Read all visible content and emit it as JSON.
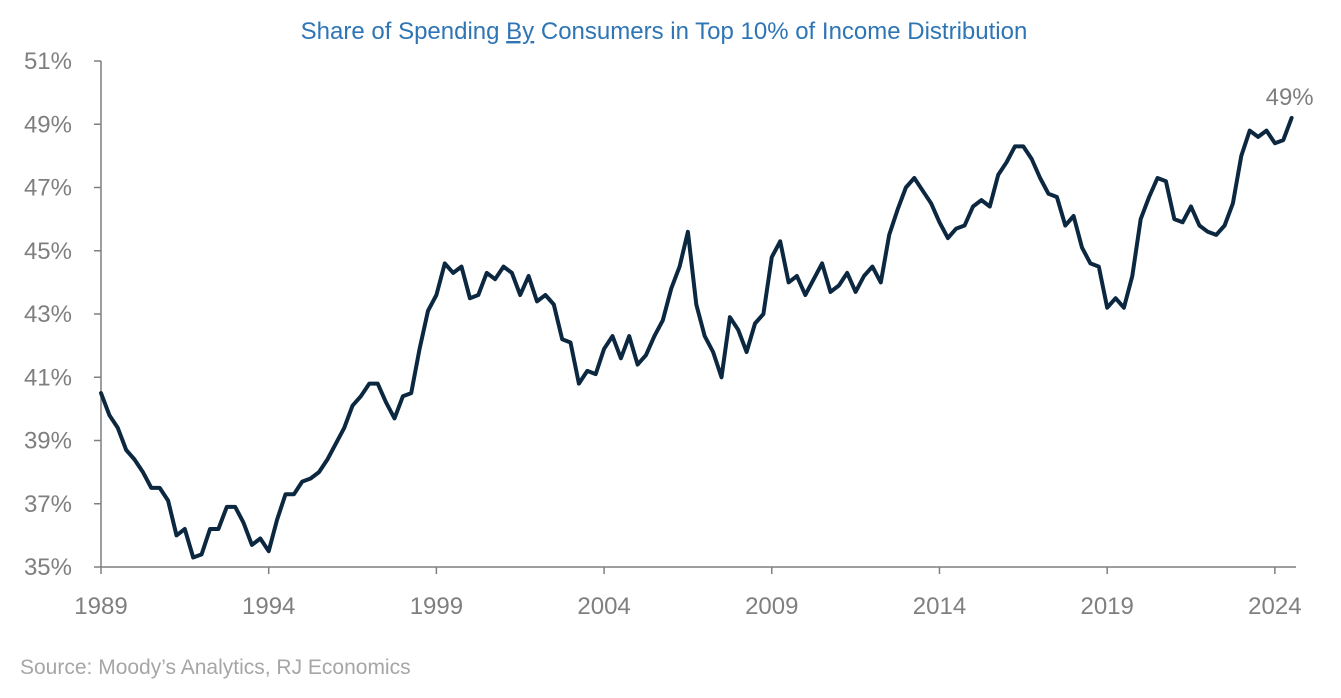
{
  "colors": {
    "title": "#2e75b6",
    "axis_text": "#7f7f7f",
    "series_line": "#0c2740",
    "axis_line": "#7f7f7f",
    "source_text": "#a6a6a6",
    "annotation_text": "#7f7f7f"
  },
  "source": "Source: Moody’s Analytics, RJ Economics",
  "chart_data": {
    "type": "line",
    "title_parts": [
      "Share of Spending ",
      "By",
      " Consumers in Top 10% of Income Distribution"
    ],
    "title": "Share of Spending By Consumers in Top 10% of Income Distribution",
    "xlabel": "",
    "ylabel": "",
    "xlim": [
      1989,
      2024.63
    ],
    "ylim": [
      35,
      51
    ],
    "x_ticks": [
      1989,
      1994,
      1999,
      2004,
      2009,
      2014,
      2019,
      2024
    ],
    "x_tick_labels": [
      "1989",
      "1994",
      "1999",
      "2004",
      "2009",
      "2014",
      "2019",
      "2024"
    ],
    "y_ticks": [
      35,
      37,
      39,
      41,
      43,
      45,
      47,
      49,
      51
    ],
    "y_tick_labels": [
      "35%",
      "37%",
      "39%",
      "41%",
      "43%",
      "45%",
      "47%",
      "49%",
      "51%"
    ],
    "grid": false,
    "legend": "none",
    "annotation": {
      "text": "49%",
      "x": 2024.5,
      "y": 49.1
    },
    "series": [
      {
        "x": [
          1989.0,
          1989.25,
          1989.5,
          1989.75,
          1990.0,
          1990.25,
          1990.5,
          1990.75,
          1991.0,
          1991.25,
          1991.5,
          1991.75,
          1992.0,
          1992.25,
          1992.5,
          1992.75,
          1993.0,
          1993.25,
          1993.5,
          1993.75,
          1994.0,
          1994.25,
          1994.5,
          1994.75,
          1995.0,
          1995.25,
          1995.5,
          1995.75,
          1996.0,
          1996.25,
          1996.5,
          1996.75,
          1997.0,
          1997.25,
          1997.5,
          1997.75,
          1998.0,
          1998.25,
          1998.5,
          1998.75,
          1999.0,
          1999.25,
          1999.5,
          1999.75,
          2000.0,
          2000.25,
          2000.5,
          2000.75,
          2001.0,
          2001.25,
          2001.5,
          2001.75,
          2002.0,
          2002.25,
          2002.5,
          2002.75,
          2003.0,
          2003.25,
          2003.5,
          2003.75,
          2004.0,
          2004.25,
          2004.5,
          2004.75,
          2005.0,
          2005.25,
          2005.5,
          2005.75,
          2006.0,
          2006.25,
          2006.5,
          2006.75,
          2007.0,
          2007.25,
          2007.5,
          2007.75,
          2008.0,
          2008.25,
          2008.5,
          2008.75,
          2009.0,
          2009.25,
          2009.5,
          2009.75,
          2010.0,
          2010.25,
          2010.5,
          2010.75,
          2011.0,
          2011.25,
          2011.5,
          2011.75,
          2012.0,
          2012.25,
          2012.5,
          2012.75,
          2013.0,
          2013.25,
          2013.5,
          2013.75,
          2014.0,
          2014.25,
          2014.5,
          2014.75,
          2015.0,
          2015.25,
          2015.5,
          2015.75,
          2016.0,
          2016.25,
          2016.5,
          2016.75,
          2017.0,
          2017.25,
          2017.5,
          2017.75,
          2018.0,
          2018.25,
          2018.5,
          2018.75,
          2019.0,
          2019.25,
          2019.5,
          2019.75,
          2020.0,
          2020.25,
          2020.5,
          2020.75,
          2021.0,
          2021.25,
          2021.5,
          2021.75,
          2022.0,
          2022.25,
          2022.5,
          2022.75,
          2023.0,
          2023.25,
          2023.5,
          2023.75,
          2024.0,
          2024.25,
          2024.5
        ],
        "values": [
          40.5,
          39.8,
          39.4,
          38.7,
          38.4,
          38.0,
          37.5,
          37.5,
          37.1,
          36.0,
          36.2,
          35.3,
          35.4,
          36.2,
          36.2,
          36.9,
          36.9,
          36.4,
          35.7,
          35.9,
          35.5,
          36.5,
          37.3,
          37.3,
          37.7,
          37.8,
          38.0,
          38.4,
          38.9,
          39.4,
          40.1,
          40.4,
          40.8,
          40.8,
          40.2,
          39.7,
          40.4,
          40.5,
          41.9,
          43.1,
          43.6,
          44.6,
          44.3,
          44.5,
          43.5,
          43.6,
          44.3,
          44.1,
          44.5,
          44.3,
          43.6,
          44.2,
          43.4,
          43.6,
          43.3,
          42.2,
          42.1,
          40.8,
          41.2,
          41.1,
          41.9,
          42.3,
          41.6,
          42.3,
          41.4,
          41.7,
          42.3,
          42.8,
          43.8,
          44.5,
          45.6,
          43.3,
          42.3,
          41.8,
          41.0,
          42.9,
          42.5,
          41.8,
          42.7,
          43.0,
          44.8,
          45.3,
          44.0,
          44.2,
          43.6,
          44.1,
          44.6,
          43.7,
          43.9,
          44.3,
          43.7,
          44.2,
          44.5,
          44.0,
          45.5,
          46.3,
          47.0,
          47.3,
          46.9,
          46.5,
          45.9,
          45.4,
          45.7,
          45.8,
          46.4,
          46.6,
          46.4,
          47.4,
          47.8,
          48.3,
          48.3,
          47.9,
          47.3,
          46.8,
          46.7,
          45.8,
          46.1,
          45.1,
          44.6,
          44.5,
          43.2,
          43.5,
          43.2,
          44.2,
          46.0,
          46.7,
          47.3,
          47.2,
          46.0,
          45.9,
          46.4,
          45.8,
          45.6,
          45.5,
          45.8,
          46.5,
          48.0,
          48.8,
          48.6,
          48.8,
          48.4,
          48.5,
          49.2
        ]
      }
    ]
  }
}
